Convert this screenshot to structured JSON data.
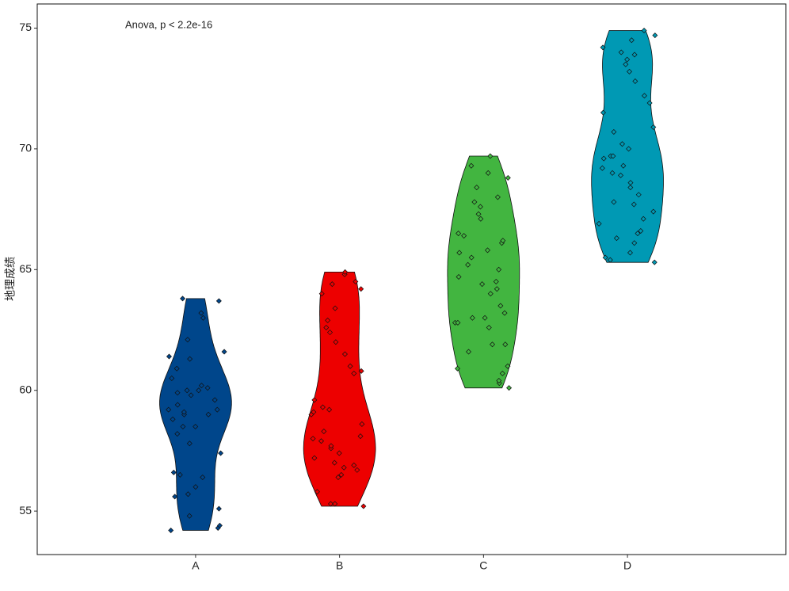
{
  "chart_data": {
    "type": "violin",
    "annotation": "Anova, p < 2.2e-16",
    "y_label": "地理成绩",
    "categories": [
      "A",
      "B",
      "C",
      "D"
    ],
    "colors": [
      "#00468b",
      "#ed0000",
      "#42b540",
      "#0099b4"
    ],
    "values": [
      [
        54.3,
        54.4,
        54.2,
        54.8,
        55.1,
        55.6,
        55.7,
        56.0,
        56.4,
        56.5,
        56.6,
        57.4,
        57.8,
        58.2,
        58.5,
        58.5,
        58.8,
        59.0,
        59.0,
        59.1,
        59.2,
        59.2,
        59.4,
        59.6,
        59.8,
        59.9,
        60.0,
        60.0,
        60.1,
        60.2,
        60.5,
        60.9,
        61.3,
        61.4,
        61.6,
        62.1,
        63.0,
        63.2,
        63.7,
        63.8
      ],
      [
        55.2,
        55.3,
        55.3,
        55.8,
        56.4,
        56.5,
        56.7,
        56.8,
        56.9,
        57.0,
        57.2,
        57.4,
        57.6,
        57.7,
        57.9,
        58.0,
        58.1,
        58.3,
        58.6,
        59.0,
        59.1,
        59.2,
        59.3,
        59.6,
        60.7,
        60.8,
        61.0,
        61.5,
        62.0,
        62.4,
        62.6,
        62.9,
        63.4,
        64.0,
        64.2,
        64.4,
        64.5,
        64.8,
        64.9
      ],
      [
        60.1,
        60.3,
        60.4,
        60.7,
        60.9,
        61.0,
        61.6,
        61.9,
        61.9,
        62.6,
        62.8,
        62.8,
        63.0,
        63.0,
        63.2,
        63.5,
        64.0,
        64.2,
        64.4,
        64.5,
        64.7,
        65.0,
        65.2,
        65.5,
        65.7,
        65.8,
        66.1,
        66.2,
        66.4,
        66.5,
        67.1,
        67.3,
        67.6,
        67.8,
        68.0,
        68.4,
        68.8,
        69.0,
        69.3,
        69.7
      ],
      [
        65.3,
        65.4,
        65.5,
        65.7,
        66.1,
        66.3,
        66.5,
        66.6,
        66.9,
        67.1,
        67.4,
        67.7,
        67.8,
        68.1,
        68.4,
        68.6,
        68.9,
        69.0,
        69.2,
        69.3,
        69.6,
        69.7,
        69.7,
        70.0,
        70.2,
        70.7,
        70.9,
        71.5,
        71.9,
        72.2,
        72.8,
        73.2,
        73.5,
        73.7,
        73.9,
        74.0,
        74.2,
        74.5,
        74.7,
        74.9
      ]
    ],
    "ylim": [
      53.2,
      76.0
    ],
    "yticks": [
      55,
      60,
      65,
      70,
      75
    ]
  }
}
